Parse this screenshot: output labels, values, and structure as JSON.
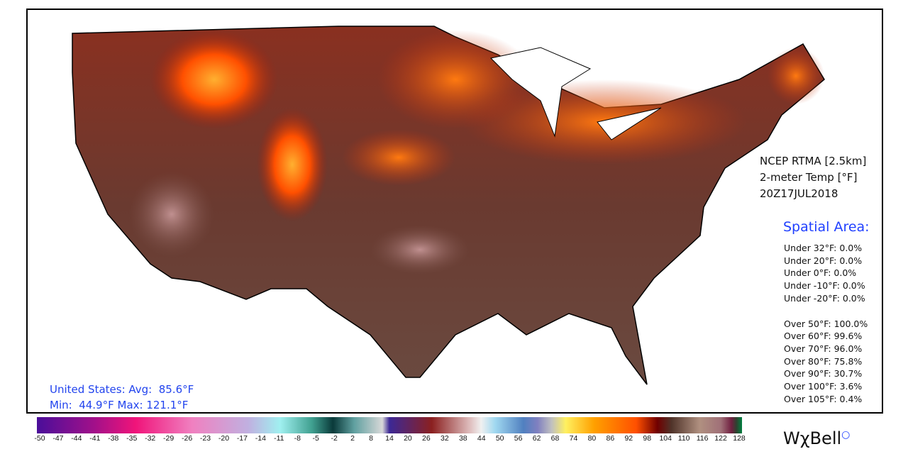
{
  "product": {
    "model": "NCEP RTMA [2.5km]",
    "variable": "2-meter Temp [°F]",
    "valid_time": "20Z17JUL2018"
  },
  "spatial_area": {
    "heading": "Spatial Area:",
    "under": [
      "Under 32°F: 0.0%",
      "Under 20°F: 0.0%",
      "Under 0°F: 0.0%",
      "Under -10°F: 0.0%",
      "Under -20°F: 0.0%"
    ],
    "over": [
      "Over 50°F: 100.0%",
      "Over 60°F: 99.6%",
      "Over 70°F: 96.0%",
      "Over 80°F: 75.8%",
      "Over 90°F: 30.7%",
      "Over 100°F: 3.6%",
      "Over 105°F: 0.4%"
    ]
  },
  "summary": {
    "line1": "United States: Avg:  85.6°F",
    "line2": "Min:  44.9°F Max: 121.1°F"
  },
  "colorbar": {
    "unit": "°F",
    "ticks": [
      "-50",
      "-47",
      "-44",
      "-41",
      "-38",
      "-35",
      "-32",
      "-29",
      "-26",
      "-23",
      "-20",
      "-17",
      "-14",
      "-11",
      "-8",
      "-5",
      "-2",
      "2",
      "8",
      "14",
      "20",
      "26",
      "32",
      "38",
      "44",
      "50",
      "56",
      "62",
      "68",
      "74",
      "80",
      "86",
      "92",
      "98",
      "104",
      "110",
      "116",
      "122",
      "128"
    ]
  },
  "logo": "WχBell",
  "colors": {
    "accent": "#2040ff",
    "hot": "#ff5000",
    "brown": "#5a3a30"
  }
}
